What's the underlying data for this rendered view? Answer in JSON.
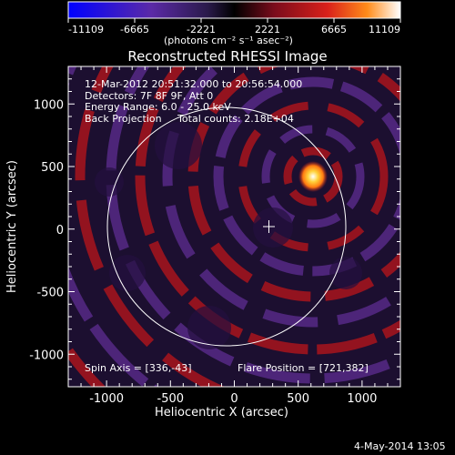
{
  "colorbar": {
    "min_label": "-11109",
    "tick_labels": [
      "-11109",
      "-6665",
      "-2221",
      "2221",
      "6665",
      "11109"
    ],
    "unit_label": "(photons cm⁻² s⁻¹ asec⁻²)",
    "colors": [
      "#0000ff",
      "#5b2aa7",
      "#2a1a4a",
      "#000000",
      "#7a0c1c",
      "#d9201a",
      "#ff8c1a",
      "#ffffff"
    ]
  },
  "plot": {
    "title": "Reconstructed RHESSI Image",
    "info_lines": [
      "12-Mar-2012 20:51:32.000 to 20:56:54.000",
      "Detectors: 7F 8F 9F, Att 0",
      "Energy Range: 6.0 - 25.0 keV",
      "Back Projection     Total counts: 2.18E+04"
    ],
    "spin_axis": "Spin Axis = [336,-43]",
    "flare_position": "Flare Position = [721,382]",
    "xlabel": "Heliocentric X (arcsec)",
    "ylabel": "Heliocentric Y (arcsec)",
    "date_stamp": "4-May-2014 13:05"
  },
  "chart_data": {
    "type": "heatmap",
    "title": "Reconstructed RHESSI Image",
    "xlabel": "Heliocentric X (arcsec)",
    "ylabel": "Heliocentric Y (arcsec)",
    "xlim": [
      -1300,
      1300
    ],
    "ylim": [
      -1260,
      1300
    ],
    "x_ticks": [
      -1000,
      -500,
      0,
      500,
      1000
    ],
    "y_ticks": [
      -1000,
      -500,
      0,
      500,
      1000
    ],
    "color_range": [
      -11109,
      11109
    ],
    "colorbar_ticks": [
      -11109,
      -6665,
      -2221,
      2221,
      6665,
      11109
    ],
    "solar_disk_radius": 960,
    "spin_axis": [
      336,
      -43
    ],
    "flare_position": [
      721,
      382
    ],
    "total_counts": 21800,
    "energy_range_kev": [
      6.0,
      25.0
    ]
  }
}
